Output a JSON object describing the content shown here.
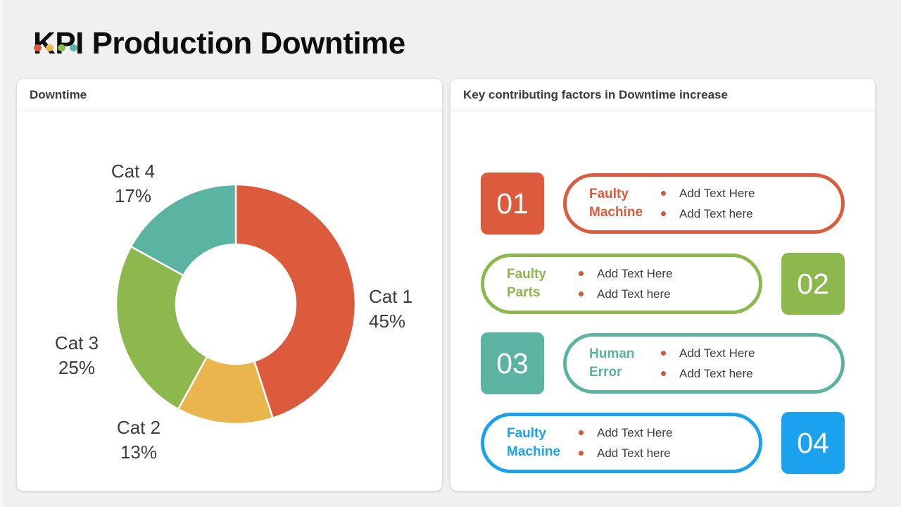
{
  "page": {
    "title": "KPI Production Downtime",
    "background": "#f0f0f1",
    "title_dots": [
      "#DC5B3C",
      "#EAB54C",
      "#8CB84E",
      "#5BB4A1"
    ]
  },
  "downtime_panel": {
    "header": "Downtime"
  },
  "factors_panel": {
    "header": "Key contributing factors in Downtime increase",
    "bullet_dot_color": "#CE5A38",
    "items": [
      {
        "number": "01",
        "label": "Faulty Machine",
        "color": "#DC5B3C",
        "side": "left",
        "bullets": [
          "Add Text Here",
          "Add Text here"
        ]
      },
      {
        "number": "02",
        "label": "Faulty Parts",
        "color": "#8CB84E",
        "side": "right",
        "bullets": [
          "Add Text Here",
          "Add Text here"
        ]
      },
      {
        "number": "03",
        "label": "Human Error",
        "color": "#5BB4A1",
        "side": "left",
        "bullets": [
          "Add Text Here",
          "Add Text here"
        ]
      },
      {
        "number": "04",
        "label": "Faulty Machine",
        "color": "#1BA2EE",
        "side": "right",
        "bullets": [
          "Add Text Here",
          "Add Text here"
        ]
      }
    ]
  },
  "chart_data": {
    "type": "pie",
    "variant": "donut",
    "title": "Downtime",
    "categories": [
      "Cat 1",
      "Cat 2",
      "Cat 3",
      "Cat 4"
    ],
    "values": [
      45,
      13,
      25,
      17
    ],
    "unit": "%",
    "colors": [
      "#DC5B3C",
      "#EAB54C",
      "#8CB84E",
      "#5BB4A1"
    ],
    "start_angle_deg": 0,
    "direction": "clockwise",
    "inner_radius_ratio": 0.5,
    "slice_gap_color": "#ffffff",
    "legend": "none",
    "labels_outside": true
  }
}
